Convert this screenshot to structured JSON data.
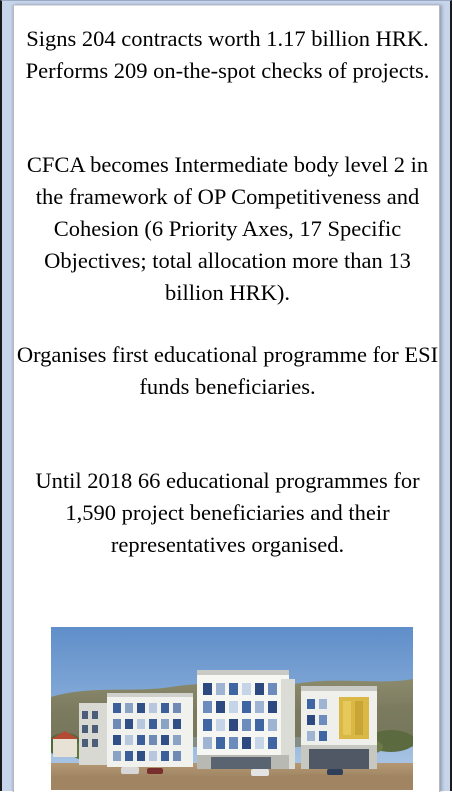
{
  "paragraphs": [
    "Signs 204 contracts worth 1.17 billion HRK. Performs 209 on-the-spot checks of projects.",
    "CFCA becomes Intermediate body level 2 in the framework of OP Competitiveness and Cohesion (6 Priority Axes, 17 Specific Objectives; total allocation more than 13 billion HRK).",
    "Organises first educational programme for ESI funds beneficiaries.",
    "Until 2018 66 educational programmes for 1,590 project beneficiaries and their representatives organised."
  ],
  "colors": {
    "frame_background": "#c6d4ec",
    "panel_background": "#ffffff",
    "text": "#000000"
  }
}
